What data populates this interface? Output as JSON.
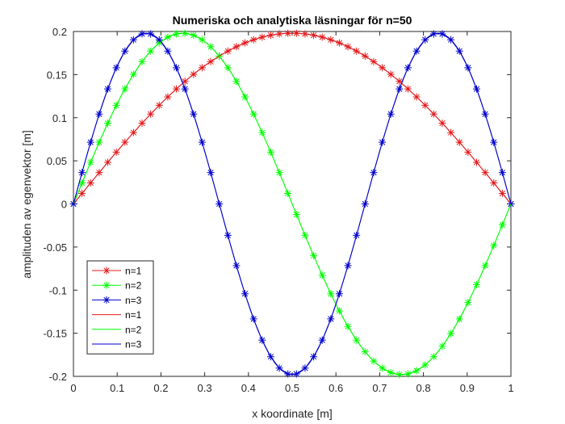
{
  "chart_data": {
    "type": "line",
    "title": "Numeriska och analytiska läsningar för n=50",
    "xlabel": "x koordinate [m]",
    "ylabel": "amplituden av egenvektor [m]",
    "xlim": [
      0,
      1
    ],
    "ylim": [
      -0.2,
      0.2
    ],
    "xticks": [
      0,
      0.1,
      0.2,
      0.3,
      0.4,
      0.5,
      0.6,
      0.7,
      0.8,
      0.9,
      1
    ],
    "xtick_labels": [
      "0",
      "0.1",
      "0.2",
      "0.3",
      "0.4",
      "0.5",
      "0.6",
      "0.7",
      "0.8",
      "0.9",
      "1"
    ],
    "yticks": [
      -0.2,
      -0.15,
      -0.1,
      -0.05,
      0,
      0.05,
      0.1,
      0.15,
      0.2
    ],
    "ytick_labels": [
      "-0.2",
      "-0.15",
      "-0.1",
      "-0.05",
      "0",
      "0.05",
      "0.1",
      "0.15",
      "0.2"
    ],
    "grid": false,
    "legend_position": "bottom-left",
    "amplitude": 0.198,
    "numeric_points": 50,
    "series": [
      {
        "name": "n=1",
        "mode": "n",
        "style": "line-marker",
        "marker": "*",
        "color": "#e41a1c"
      },
      {
        "name": "n=2",
        "mode": "n",
        "style": "line-marker",
        "marker": "*",
        "color": "#00ff00"
      },
      {
        "name": "n=3",
        "mode": "n",
        "style": "line-marker",
        "marker": "*",
        "color": "#0000cc"
      },
      {
        "name": "n=1",
        "mode": "n",
        "style": "line",
        "color": "#e41a1c"
      },
      {
        "name": "n=2",
        "mode": "n",
        "style": "line",
        "color": "#00ff00"
      },
      {
        "name": "n=3",
        "mode": "n",
        "style": "line",
        "color": "#0000cc"
      }
    ],
    "series_modes": [
      1,
      2,
      3,
      1,
      2,
      3
    ]
  }
}
